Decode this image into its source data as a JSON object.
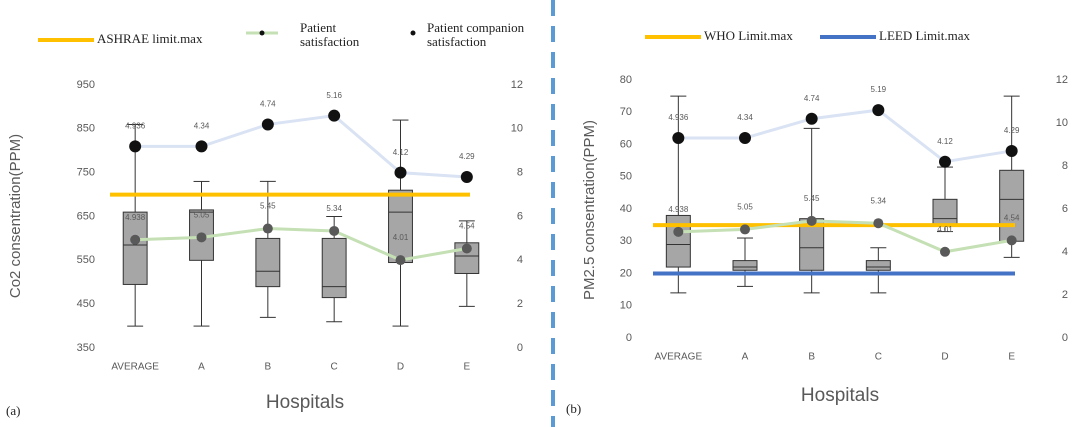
{
  "chart_data": [
    {
      "type": "box",
      "panel_label": "(a)",
      "y_label": "Co2 consentration(PPM)",
      "x_label": "Hospitals",
      "categories": [
        "AVERAGE",
        "A",
        "B",
        "C",
        "D",
        "E"
      ],
      "boxes": {
        "color": "#a6a6a6",
        "min": [
          400,
          400,
          420,
          410,
          400,
          445
        ],
        "q1": [
          495,
          550,
          490,
          465,
          545,
          520
        ],
        "median": [
          585,
          660,
          525,
          490,
          660,
          560
        ],
        "q3": [
          660,
          665,
          600,
          600,
          710,
          590
        ],
        "max": [
          860,
          730,
          730,
          650,
          870,
          640
        ]
      },
      "reference_lines": [
        {
          "name": "ASHRAE limit.max",
          "color": "#ffc000",
          "value": 700
        }
      ],
      "series": [
        {
          "name": "Patient satisfaction",
          "color": "#c5e0b4",
          "axis": "y2",
          "values": [
            4.938,
            5.05,
            5.45,
            5.34,
            4.01,
            4.54
          ]
        },
        {
          "name": "Patient companion satisfaction",
          "color": "#dae3f3",
          "axis": "y2",
          "values": [
            9.2,
            9.2,
            10.2,
            10.6,
            8.0,
            7.8
          ],
          "annotations": [
            "4.936",
            "4.34",
            "4.74",
            "5.16",
            "4.12",
            "4.29"
          ]
        }
      ],
      "ylim": [
        350,
        950
      ],
      "yticks": [
        350,
        450,
        550,
        650,
        750,
        850,
        950
      ],
      "y2lim": [
        0,
        12
      ],
      "y2ticks": [
        0,
        2,
        4,
        6,
        8,
        10,
        12
      ]
    },
    {
      "type": "box",
      "panel_label": "(b)",
      "y_label": "PM2.5 consentration(PPM)",
      "x_label": "Hospitals",
      "categories": [
        "AVERAGE",
        "A",
        "B",
        "C",
        "D",
        "E"
      ],
      "boxes": {
        "color": "#a6a6a6",
        "min": [
          14,
          16,
          14,
          14,
          33,
          25
        ],
        "q1": [
          22,
          21,
          21,
          21,
          35,
          30
        ],
        "median": [
          29,
          22,
          28,
          22,
          37,
          43
        ],
        "q3": [
          38,
          24,
          37,
          24,
          43,
          52
        ],
        "max": [
          75,
          31,
          65,
          28,
          53,
          75
        ]
      },
      "reference_lines": [
        {
          "name": "WHO Limit.max",
          "color": "#ffc000",
          "value": 35
        },
        {
          "name": "LEED Limit.max",
          "color": "#4472c4",
          "value": 20
        }
      ],
      "series": [
        {
          "name": "Patient satisfaction",
          "color": "#c5e0b4",
          "axis": "y2",
          "values": [
            4.938,
            5.05,
            5.45,
            5.34,
            4.01,
            4.54
          ]
        },
        {
          "name": "Patient companion satisfaction",
          "color": "#dae3f3",
          "axis": "y2",
          "values": [
            9.3,
            9.3,
            10.2,
            10.6,
            8.2,
            8.7
          ],
          "annotations": [
            "4.936",
            "4.34",
            "4.74",
            "5.19",
            "4.12",
            "4.29"
          ]
        }
      ],
      "ylim": [
        0,
        80
      ],
      "yticks": [
        0,
        10,
        20,
        30,
        40,
        50,
        60,
        70,
        80
      ],
      "y2lim": [
        0,
        12
      ],
      "y2ticks": [
        0,
        2,
        4,
        6,
        8,
        10,
        12
      ]
    }
  ]
}
